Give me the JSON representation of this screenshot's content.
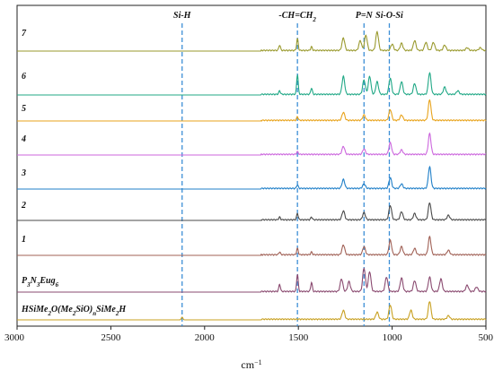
{
  "chart_data": {
    "type": "line",
    "xlabel": "cm",
    "xlabel_superscript": "−1",
    "xlim": [
      3000,
      500
    ],
    "x_ticks": [
      "3000",
      "2500",
      "2000",
      "1500",
      "1000",
      "500"
    ],
    "x_tick_values": [
      3000,
      2500,
      2000,
      1500,
      1000,
      500
    ],
    "annotations": [
      {
        "label": "Si-H",
        "x": 2120,
        "color": "#3d8fd6"
      },
      {
        "label": "-CH=CH",
        "sub": "2",
        "x": 1505,
        "color": "#3d8fd6"
      },
      {
        "label": "P=N",
        "x": 1150,
        "color": "#3d8fd6"
      },
      {
        "label": "Si-O-Si",
        "x": 1015,
        "color": "#3d8fd6"
      }
    ],
    "series": [
      {
        "name": "7",
        "color": "#9a9a2e",
        "peaks": [
          [
            1600,
            6
          ],
          [
            1505,
            13
          ],
          [
            1430,
            4
          ],
          [
            1260,
            14
          ],
          [
            1170,
            11
          ],
          [
            1140,
            17
          ],
          [
            1080,
            21
          ],
          [
            1000,
            7
          ],
          [
            950,
            8
          ],
          [
            880,
            11
          ],
          [
            820,
            9
          ],
          [
            780,
            9
          ],
          [
            720,
            6
          ],
          [
            600,
            3
          ],
          [
            530,
            3
          ]
        ]
      },
      {
        "name": "6",
        "color": "#20a886",
        "peaks": [
          [
            1600,
            4
          ],
          [
            1505,
            22
          ],
          [
            1430,
            7
          ],
          [
            1260,
            20
          ],
          [
            1150,
            16
          ],
          [
            1120,
            20
          ],
          [
            1080,
            14
          ],
          [
            1010,
            18
          ],
          [
            950,
            14
          ],
          [
            880,
            12
          ],
          [
            800,
            24
          ],
          [
            720,
            8
          ],
          [
            650,
            4
          ]
        ]
      },
      {
        "name": "5",
        "color": "#e8a31b",
        "peaks": [
          [
            1505,
            4
          ],
          [
            1260,
            9
          ],
          [
            1150,
            6
          ],
          [
            1010,
            12
          ],
          [
            950,
            6
          ],
          [
            800,
            23
          ]
        ]
      },
      {
        "name": "4",
        "color": "#cc66dd",
        "peaks": [
          [
            1505,
            3
          ],
          [
            1260,
            9
          ],
          [
            1150,
            6
          ],
          [
            1010,
            13
          ],
          [
            950,
            5
          ],
          [
            800,
            23
          ]
        ]
      },
      {
        "name": "3",
        "color": "#1f7fc8",
        "peaks": [
          [
            1505,
            4
          ],
          [
            1260,
            10
          ],
          [
            1150,
            5
          ],
          [
            1010,
            12
          ],
          [
            950,
            5
          ],
          [
            800,
            24
          ]
        ]
      },
      {
        "name": "2",
        "color": "#4a4a4a",
        "peaks": [
          [
            1600,
            3
          ],
          [
            1505,
            7
          ],
          [
            1430,
            3
          ],
          [
            1260,
            10
          ],
          [
            1150,
            8
          ],
          [
            1010,
            16
          ],
          [
            950,
            9
          ],
          [
            880,
            7
          ],
          [
            800,
            19
          ],
          [
            700,
            5
          ]
        ]
      },
      {
        "name": "1",
        "color": "#a06055",
        "peaks": [
          [
            1600,
            3
          ],
          [
            1505,
            7
          ],
          [
            1430,
            3
          ],
          [
            1260,
            11
          ],
          [
            1150,
            9
          ],
          [
            1010,
            16
          ],
          [
            950,
            9
          ],
          [
            880,
            7
          ],
          [
            800,
            20
          ],
          [
            700,
            5
          ]
        ]
      },
      {
        "name": "P3N3Eug6",
        "color": "#8a4a70",
        "peaks": [
          [
            1600,
            8
          ],
          [
            1505,
            19
          ],
          [
            1430,
            10
          ],
          [
            1270,
            14
          ],
          [
            1230,
            11
          ],
          [
            1150,
            26
          ],
          [
            1120,
            22
          ],
          [
            1030,
            16
          ],
          [
            950,
            15
          ],
          [
            880,
            12
          ],
          [
            800,
            16
          ],
          [
            740,
            14
          ],
          [
            600,
            7
          ],
          [
            550,
            5
          ]
        ]
      },
      {
        "name": "HSiMe2O(Me2SiO)nSiMe2H",
        "color": "#c8a020",
        "peaks": [
          [
            2120,
            3
          ],
          [
            1260,
            10
          ],
          [
            1080,
            8
          ],
          [
            1010,
            16
          ],
          [
            900,
            10
          ],
          [
            800,
            20
          ],
          [
            700,
            4
          ]
        ]
      }
    ],
    "series_labels": [
      {
        "parts": [
          [
            "7",
            ""
          ]
        ]
      },
      {
        "parts": [
          [
            "6",
            ""
          ]
        ]
      },
      {
        "parts": [
          [
            "5",
            ""
          ]
        ]
      },
      {
        "parts": [
          [
            "4",
            ""
          ]
        ]
      },
      {
        "parts": [
          [
            "3",
            ""
          ]
        ]
      },
      {
        "parts": [
          [
            "2",
            ""
          ]
        ]
      },
      {
        "parts": [
          [
            "1",
            ""
          ]
        ]
      },
      {
        "parts": [
          [
            "P",
            "3"
          ],
          [
            "N",
            "3"
          ],
          [
            "Eug",
            "6"
          ]
        ]
      },
      {
        "parts": [
          [
            "HSiMe",
            "2"
          ],
          [
            "O(Me",
            "2"
          ],
          [
            "SiO)",
            "n"
          ],
          [
            "SiMe",
            "2"
          ],
          [
            "H",
            ""
          ]
        ]
      }
    ]
  }
}
